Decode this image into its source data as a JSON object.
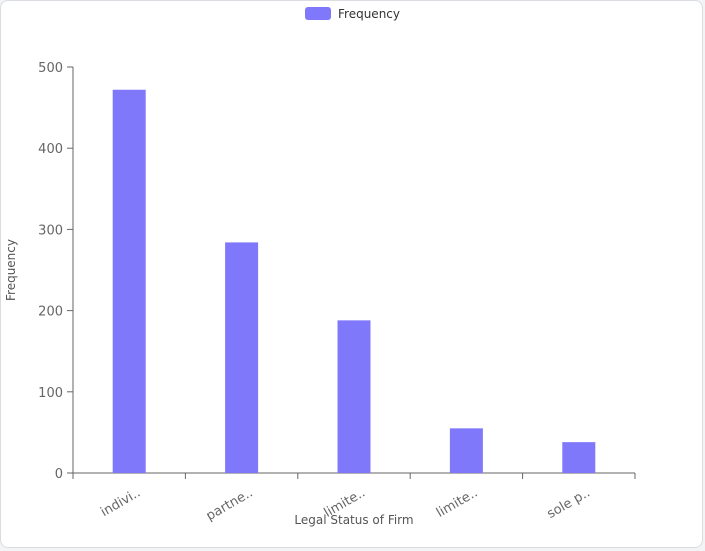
{
  "chart_data": {
    "type": "bar",
    "categories": [
      "indivi..",
      "partne..",
      "limite..",
      "limite..",
      "sole p.."
    ],
    "series": [
      {
        "name": "Frequency",
        "values": [
          472,
          284,
          188,
          55,
          38
        ],
        "color": "#8078fb"
      }
    ],
    "xlabel": "Legal Status of Firm",
    "ylabel": "Frequency",
    "ylim": [
      0,
      500
    ],
    "yticks": [
      0,
      100,
      200,
      300,
      400,
      500
    ],
    "grid": false,
    "legend": "top-center"
  }
}
